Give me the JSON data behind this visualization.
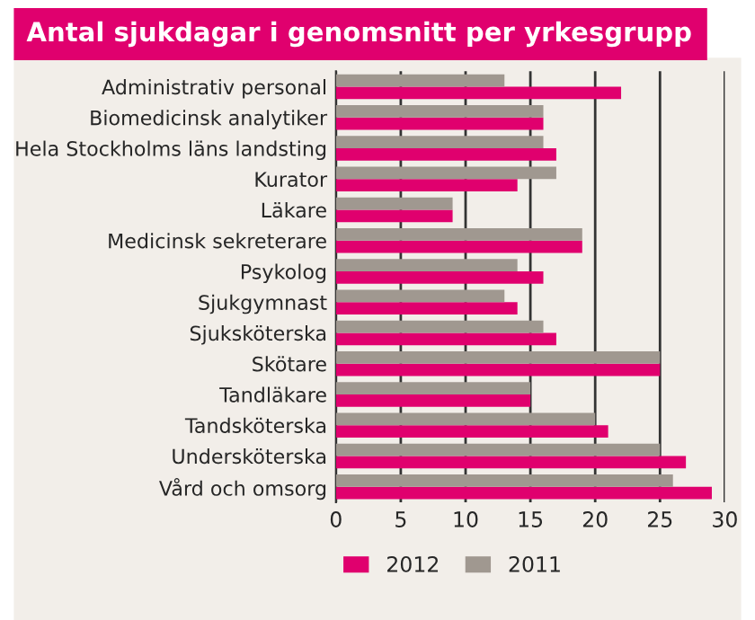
{
  "chart_data": {
    "type": "bar",
    "orientation": "horizontal",
    "title": "Antal sjukdagar i genomsnitt per yrkesgrupp",
    "categories": [
      "Administrativ personal",
      "Biomedicinsk analytiker",
      "Hela Stockholms läns landsting",
      "Kurator",
      "Läkare",
      "Medicinsk sekreterare",
      "Psykolog",
      "Sjukgymnast",
      "Sjuksköterska",
      "Skötare",
      "Tandläkare",
      "Tandsköterska",
      "Undersköterska",
      "Vård och omsorg"
    ],
    "series": [
      {
        "name": "2012",
        "color": "#e0006e",
        "values": [
          22,
          16,
          17,
          14,
          9,
          19,
          16,
          14,
          17,
          25,
          15,
          21,
          27,
          29
        ]
      },
      {
        "name": "2011",
        "color": "#a09890",
        "values": [
          13,
          16,
          16,
          17,
          9,
          19,
          14,
          13,
          16,
          25,
          15,
          20,
          25,
          26
        ]
      }
    ],
    "xlim": [
      0,
      30
    ],
    "xticks": [
      0,
      5,
      10,
      15,
      20,
      25,
      30
    ],
    "grid": "x",
    "legend": "bottom"
  }
}
